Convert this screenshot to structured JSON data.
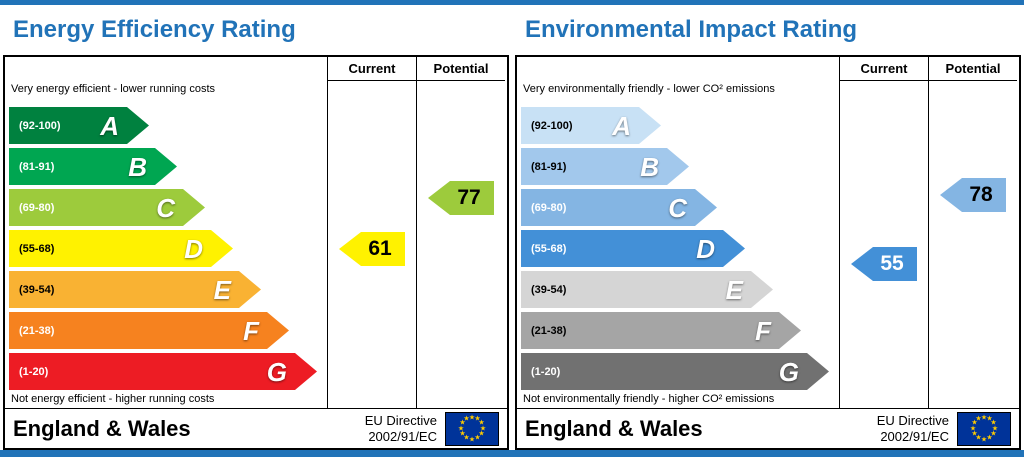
{
  "frame_color": "#2173b8",
  "title_color": "#2173b8",
  "eu_flag": {
    "bg": "#003399",
    "star": "#ffcc00",
    "star_char": "★"
  },
  "chart_data": [
    {
      "type": "bar",
      "orientation": "horizontal",
      "title": "Energy Efficiency Rating",
      "columns": {
        "current": "Current",
        "potential": "Potential"
      },
      "top_caption": "Very energy efficient - lower running costs",
      "bottom_caption": "Not energy efficient - higher running costs",
      "bands": [
        {
          "label": "(92-100)",
          "letter": "A",
          "min": 92,
          "max": 100,
          "color": "#00813f",
          "label_color": "#ffffff"
        },
        {
          "label": "(81-91)",
          "letter": "B",
          "min": 81,
          "max": 91,
          "color": "#00a651",
          "label_color": "#ffffff"
        },
        {
          "label": "(69-80)",
          "letter": "C",
          "min": 69,
          "max": 80,
          "color": "#9dcb3c",
          "label_color": "#ffffff"
        },
        {
          "label": "(55-68)",
          "letter": "D",
          "min": 55,
          "max": 68,
          "color": "#fff200",
          "label_color": "#000000"
        },
        {
          "label": "(39-54)",
          "letter": "E",
          "min": 39,
          "max": 54,
          "color": "#f9b233",
          "label_color": "#000000"
        },
        {
          "label": "(21-38)",
          "letter": "F",
          "min": 21,
          "max": 38,
          "color": "#f6821f",
          "label_color": "#ffffff"
        },
        {
          "label": "(1-20)",
          "letter": "G",
          "min": 1,
          "max": 20,
          "color": "#ed1c24",
          "label_color": "#ffffff"
        }
      ],
      "current": {
        "value": 61,
        "color": "#fff200",
        "text_color": "#000000"
      },
      "potential": {
        "value": 77,
        "color": "#9dcb3c",
        "text_color": "#000000"
      },
      "footer": {
        "region": "England & Wales",
        "directive_line1": "EU Directive",
        "directive_line2": "2002/91/EC"
      }
    },
    {
      "type": "bar",
      "orientation": "horizontal",
      "title": "Environmental Impact Rating",
      "columns": {
        "current": "Current",
        "potential": "Potential"
      },
      "top_caption": "Very environmentally friendly - lower CO² emissions",
      "bottom_caption": "Not environmentally friendly - higher CO² emissions",
      "bands": [
        {
          "label": "(92-100)",
          "letter": "A",
          "min": 92,
          "max": 100,
          "color": "#c8e1f5",
          "label_color": "#000000"
        },
        {
          "label": "(81-91)",
          "letter": "B",
          "min": 81,
          "max": 91,
          "color": "#a2c8ec",
          "label_color": "#000000"
        },
        {
          "label": "(69-80)",
          "letter": "C",
          "min": 69,
          "max": 80,
          "color": "#84b5e3",
          "label_color": "#ffffff"
        },
        {
          "label": "(55-68)",
          "letter": "D",
          "min": 55,
          "max": 68,
          "color": "#4390d7",
          "label_color": "#ffffff"
        },
        {
          "label": "(39-54)",
          "letter": "E",
          "min": 39,
          "max": 54,
          "color": "#d5d5d5",
          "label_color": "#000000"
        },
        {
          "label": "(21-38)",
          "letter": "F",
          "min": 21,
          "max": 38,
          "color": "#a5a5a5",
          "label_color": "#000000"
        },
        {
          "label": "(1-20)",
          "letter": "G",
          "min": 1,
          "max": 20,
          "color": "#717171",
          "label_color": "#ffffff"
        }
      ],
      "current": {
        "value": 55,
        "color": "#4390d7",
        "text_color": "#ffffff"
      },
      "potential": {
        "value": 78,
        "color": "#84b5e3",
        "text_color": "#000000"
      },
      "footer": {
        "region": "England & Wales",
        "directive_line1": "EU Directive",
        "directive_line2": "2002/91/EC"
      }
    }
  ]
}
